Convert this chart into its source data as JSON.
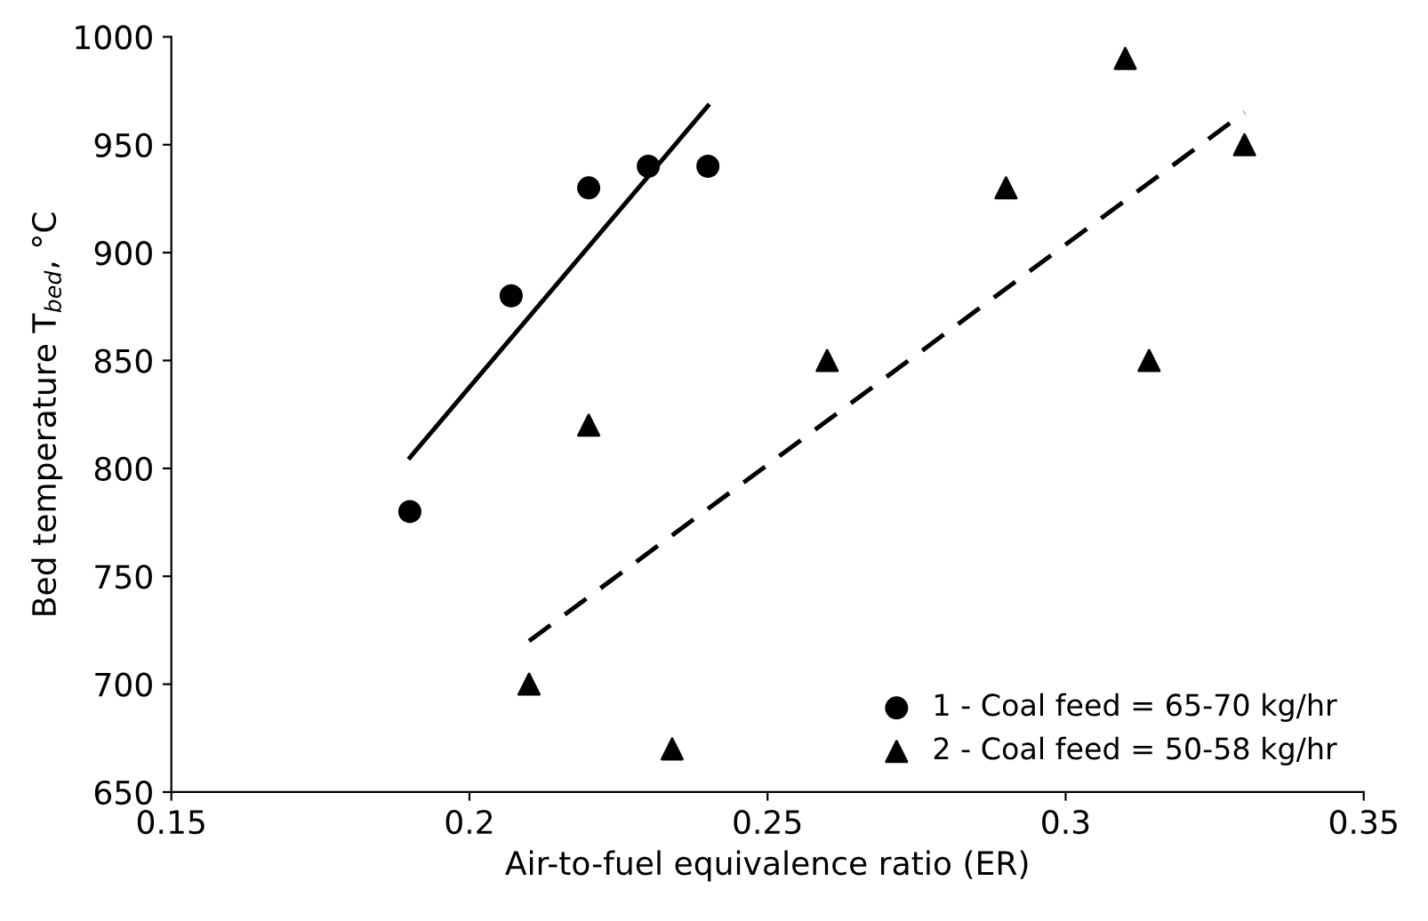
{
  "chart_data": {
    "type": "scatter",
    "xlabel": "Air-to-fuel equivalence ratio (ER)",
    "ylabel": "Bed temperature T$_{bed}$, °C",
    "xlim": [
      0.15,
      0.35
    ],
    "xticks": [
      0.15,
      0.2,
      0.25,
      0.3,
      0.35
    ],
    "ylim": [
      650,
      1000
    ],
    "yticks": [
      650,
      700,
      750,
      800,
      850,
      900,
      950,
      1000
    ],
    "grid": false,
    "legend": "bottom right",
    "series": [
      {
        "name": "1 - Coal feed = 65-70 kg/hr",
        "color": "#000000",
        "marker": "circle",
        "x": [
          0.19,
          0.207,
          0.22,
          0.23,
          0.24
        ],
        "values": [
          780,
          880,
          930,
          940,
          940
        ]
      },
      {
        "name": "2 - Coal feed = 50-58 kg/hr",
        "color": "#000000",
        "marker": "triangle",
        "x": [
          0.21,
          0.22,
          0.234,
          0.26,
          0.29,
          0.31,
          0.314,
          0.33
        ],
        "values": [
          700,
          820,
          670,
          850,
          930,
          990,
          850,
          950
        ]
      },
      {
        "type": "line",
        "color": "#000000",
        "line_style": "solid",
        "marker": "none",
        "x": [
          0.19,
          0.24
        ],
        "values": [
          805,
          968
        ]
      },
      {
        "type": "line",
        "color": "#000000",
        "line_style": "dashed",
        "marker": "none",
        "x": [
          0.21,
          0.33
        ],
        "values": [
          720,
          965
        ]
      }
    ]
  }
}
